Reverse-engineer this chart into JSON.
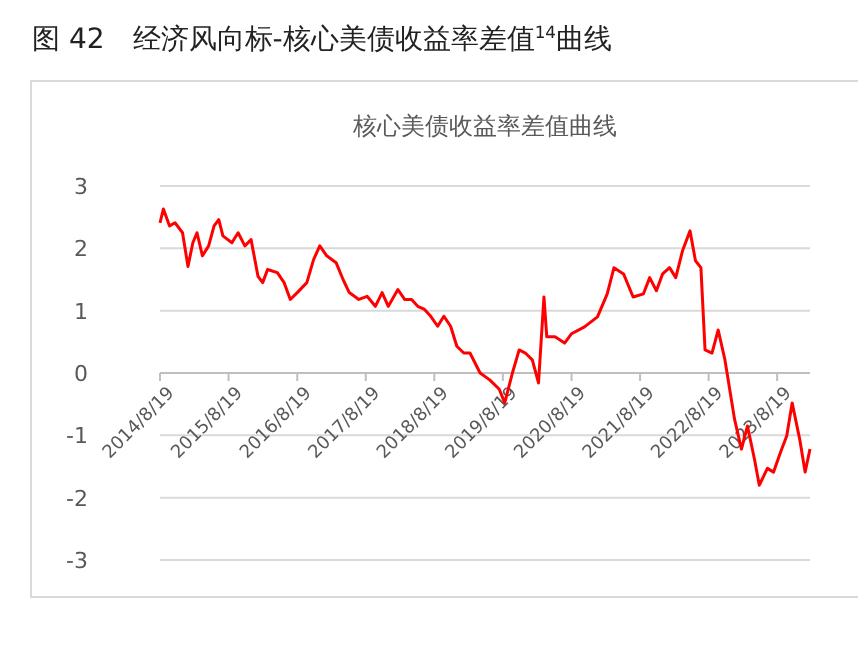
{
  "chart_data": {
    "type": "line",
    "title": "图 42　经济风向标-核心美债收益率差值$^{14}$曲线",
    "subtitle": "核心美债收益率差值曲线",
    "x": [
      "2014-08-19",
      "2014-09-06",
      "2014-10-09",
      "2014-11-07",
      "2014-12-17",
      "2015-01-15",
      "2015-02-10",
      "2015-03-04",
      "2015-04-02",
      "2015-05-05",
      "2015-06-03",
      "2015-06-28",
      "2015-07-20",
      "2015-09-06",
      "2015-10-09",
      "2015-11-14",
      "2015-12-17",
      "2016-01-23",
      "2016-02-17",
      "2016-03-14",
      "2016-05-05",
      "2016-06-10",
      "2016-07-13",
      "2016-08-19",
      "2016-10-09",
      "2016-11-14",
      "2016-12-17",
      "2017-01-23",
      "2017-03-14",
      "2017-04-20",
      "2017-05-23",
      "2017-07-13",
      "2017-08-26",
      "2017-10-09",
      "2017-11-14",
      "2017-12-17",
      "2018-02-06",
      "2018-03-14",
      "2018-04-20",
      "2018-05-23",
      "2018-06-28",
      "2018-07-31",
      "2018-09-06",
      "2018-10-09",
      "2018-11-14",
      "2018-12-17",
      "2019-01-23",
      "2019-02-25",
      "2019-04-20",
      "2019-06-10",
      "2019-07-31",
      "2019-08-29",
      "2019-10-09",
      "2019-11-14",
      "2019-12-17",
      "2020-01-23",
      "2020-02-25",
      "2020-03-25",
      "2020-04-09",
      "2020-05-23",
      "2020-07-13",
      "2020-08-19",
      "2020-10-27",
      "2021-01-04",
      "2021-02-25",
      "2021-04-02",
      "2021-05-23",
      "2021-07-13",
      "2021-09-06",
      "2021-10-09",
      "2021-11-14",
      "2021-12-17",
      "2022-01-23",
      "2022-02-25",
      "2022-04-02",
      "2022-05-12",
      "2022-06-10",
      "2022-07-09",
      "2022-07-31",
      "2022-09-06",
      "2022-10-09",
      "2022-11-14",
      "2023-01-04",
      "2023-02-10",
      "2023-03-14",
      "2023-04-20",
      "2023-05-16",
      "2023-06-28",
      "2023-07-31",
      "2023-09-06",
      "2023-10-09",
      "2023-11-07",
      "2023-12-17",
      "2024-01-15",
      "2024-02-10"
    ],
    "series": [
      {
        "color": "#ff0000",
        "values": [
          2.41,
          2.63,
          2.36,
          2.41,
          2.25,
          1.71,
          2.09,
          2.25,
          1.88,
          2.04,
          2.36,
          2.46,
          2.2,
          2.09,
          2.25,
          2.04,
          2.14,
          1.55,
          1.45,
          1.66,
          1.61,
          1.45,
          1.18,
          1.29,
          1.45,
          1.82,
          2.04,
          1.88,
          1.77,
          1.5,
          1.29,
          1.18,
          1.23,
          1.07,
          1.29,
          1.07,
          1.34,
          1.18,
          1.18,
          1.07,
          1.02,
          0.91,
          0.75,
          0.91,
          0.75,
          0.43,
          0.32,
          0.32,
          0.0,
          -0.11,
          -0.26,
          -0.48,
          0.0,
          0.37,
          0.32,
          0.21,
          -0.16,
          1.22,
          0.58,
          0.58,
          0.48,
          0.63,
          0.74,
          0.9,
          1.27,
          1.69,
          1.59,
          1.22,
          1.27,
          1.53,
          1.32,
          1.59,
          1.69,
          1.53,
          1.96,
          2.28,
          1.8,
          1.69,
          0.37,
          0.32,
          0.69,
          0.21,
          -0.74,
          -1.22,
          -0.85,
          -1.38,
          -1.8,
          -1.53,
          -1.59,
          -1.27,
          -1.01,
          -0.48,
          -1.06,
          -1.59,
          -1.22
        ]
      }
    ],
    "xlim": [
      "2014-08-19",
      "2024-02-10"
    ],
    "xticks": [
      {
        "value": "2014-08-19",
        "label": "2014/8/19"
      },
      {
        "value": "2015-08-19",
        "label": "2015/8/19"
      },
      {
        "value": "2016-08-19",
        "label": "2016/8/19"
      },
      {
        "value": "2017-08-19",
        "label": "2017/8/19"
      },
      {
        "value": "2018-08-19",
        "label": "2018/8/19"
      },
      {
        "value": "2019-08-19",
        "label": "2019/8/19"
      },
      {
        "value": "2020-08-19",
        "label": "2020/8/19"
      },
      {
        "value": "2021-08-19",
        "label": "2021/8/19"
      },
      {
        "value": "2022-08-19",
        "label": "2022/8/19"
      },
      {
        "value": "2023-08-19",
        "label": "2023/8/19"
      }
    ],
    "ylim": [
      -3,
      3
    ],
    "yticks": [
      -3,
      -2,
      -1,
      0,
      1,
      2,
      3
    ],
    "grid": "y",
    "legend": false,
    "marker": "none",
    "line_style": "solid"
  }
}
